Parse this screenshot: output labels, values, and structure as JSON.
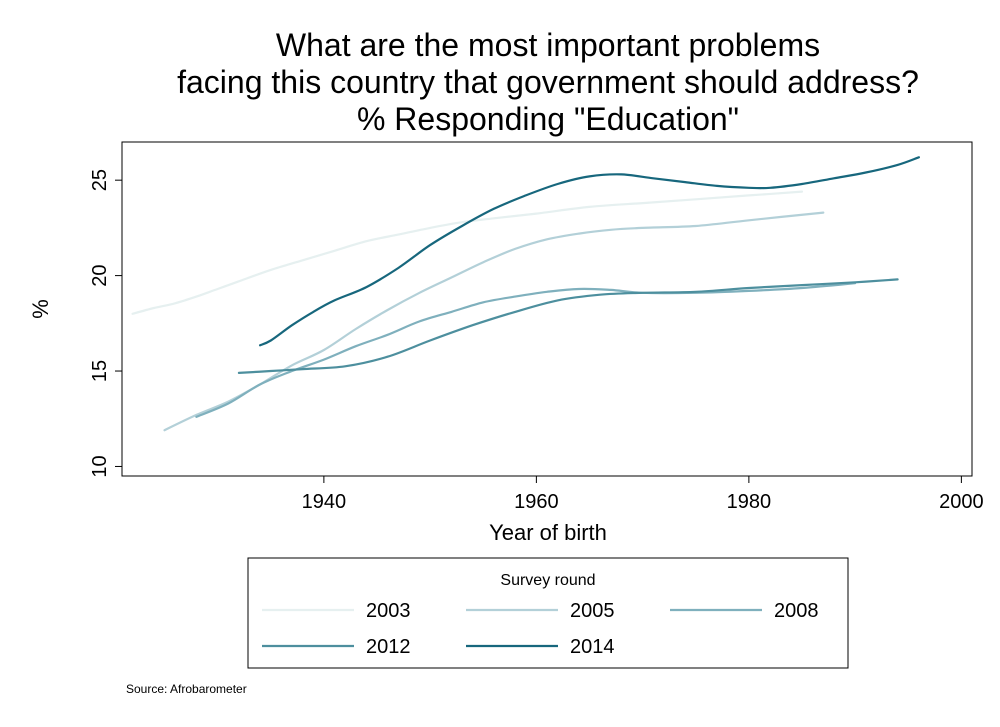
{
  "chart_data": {
    "type": "line",
    "title": [
      "What are the most important problems",
      "facing this country that government should address?",
      "% Responding \"Education\""
    ],
    "xlabel": "Year of birth",
    "ylabel": "%",
    "xlim": [
      1921,
      2001
    ],
    "ylim": [
      9.5,
      27
    ],
    "xticks": [
      1940,
      1960,
      1980,
      2000
    ],
    "yticks": [
      10,
      15,
      20,
      25
    ],
    "grid": false,
    "legend": {
      "title": "Survey round",
      "placement": "bottom"
    },
    "source": "Source: Afrobarometer",
    "series": [
      {
        "name": "2003",
        "color": "#e6f0f0",
        "x": [
          1922,
          1924,
          1926,
          1928,
          1930,
          1932,
          1935,
          1938,
          1941,
          1944,
          1947,
          1950,
          1953,
          1956,
          1960,
          1965,
          1970,
          1975,
          1980,
          1985
        ],
        "y": [
          18.0,
          18.3,
          18.55,
          18.9,
          19.3,
          19.7,
          20.3,
          20.8,
          21.3,
          21.8,
          22.15,
          22.5,
          22.8,
          23.0,
          23.25,
          23.6,
          23.8,
          24.0,
          24.2,
          24.4
        ]
      },
      {
        "name": "2005",
        "color": "#b3d0d8",
        "x": [
          1925,
          1928,
          1931,
          1934,
          1937,
          1940,
          1943,
          1946,
          1949,
          1952,
          1955,
          1958,
          1961,
          1964,
          1967,
          1970,
          1975,
          1980,
          1987
        ],
        "y": [
          11.9,
          12.7,
          13.4,
          14.3,
          15.3,
          16.1,
          17.2,
          18.2,
          19.1,
          19.9,
          20.7,
          21.4,
          21.9,
          22.2,
          22.4,
          22.5,
          22.6,
          22.9,
          23.3
        ]
      },
      {
        "name": "2008",
        "color": "#7fb0bd",
        "x": [
          1928,
          1931,
          1934,
          1937,
          1940,
          1943,
          1946,
          1949,
          1952,
          1955,
          1958,
          1961,
          1964,
          1967,
          1970,
          1975,
          1980,
          1985,
          1990
        ],
        "y": [
          12.6,
          13.3,
          14.3,
          15.0,
          15.6,
          16.3,
          16.9,
          17.6,
          18.1,
          18.6,
          18.9,
          19.15,
          19.3,
          19.25,
          19.1,
          19.1,
          19.2,
          19.35,
          19.6
        ]
      },
      {
        "name": "2012",
        "color": "#4d8f9e",
        "x": [
          1932,
          1935,
          1938,
          1942,
          1946,
          1950,
          1954,
          1958,
          1962,
          1966,
          1970,
          1975,
          1980,
          1985,
          1990,
          1994
        ],
        "y": [
          14.9,
          15.0,
          15.1,
          15.25,
          15.75,
          16.6,
          17.4,
          18.1,
          18.7,
          19.0,
          19.1,
          19.15,
          19.35,
          19.5,
          19.65,
          19.8
        ]
      },
      {
        "name": "2014",
        "color": "#17677d",
        "x": [
          1934,
          1935,
          1937,
          1939,
          1941,
          1944,
          1947,
          1950,
          1953,
          1956,
          1959,
          1962,
          1965,
          1968,
          1971,
          1974,
          1977,
          1980,
          1982,
          1985,
          1988,
          1991,
          1994,
          1996
        ],
        "y": [
          16.35,
          16.6,
          17.4,
          18.1,
          18.7,
          19.4,
          20.4,
          21.6,
          22.6,
          23.5,
          24.2,
          24.8,
          25.2,
          25.3,
          25.1,
          24.9,
          24.7,
          24.6,
          24.6,
          24.8,
          25.1,
          25.4,
          25.8,
          26.2
        ]
      }
    ]
  }
}
